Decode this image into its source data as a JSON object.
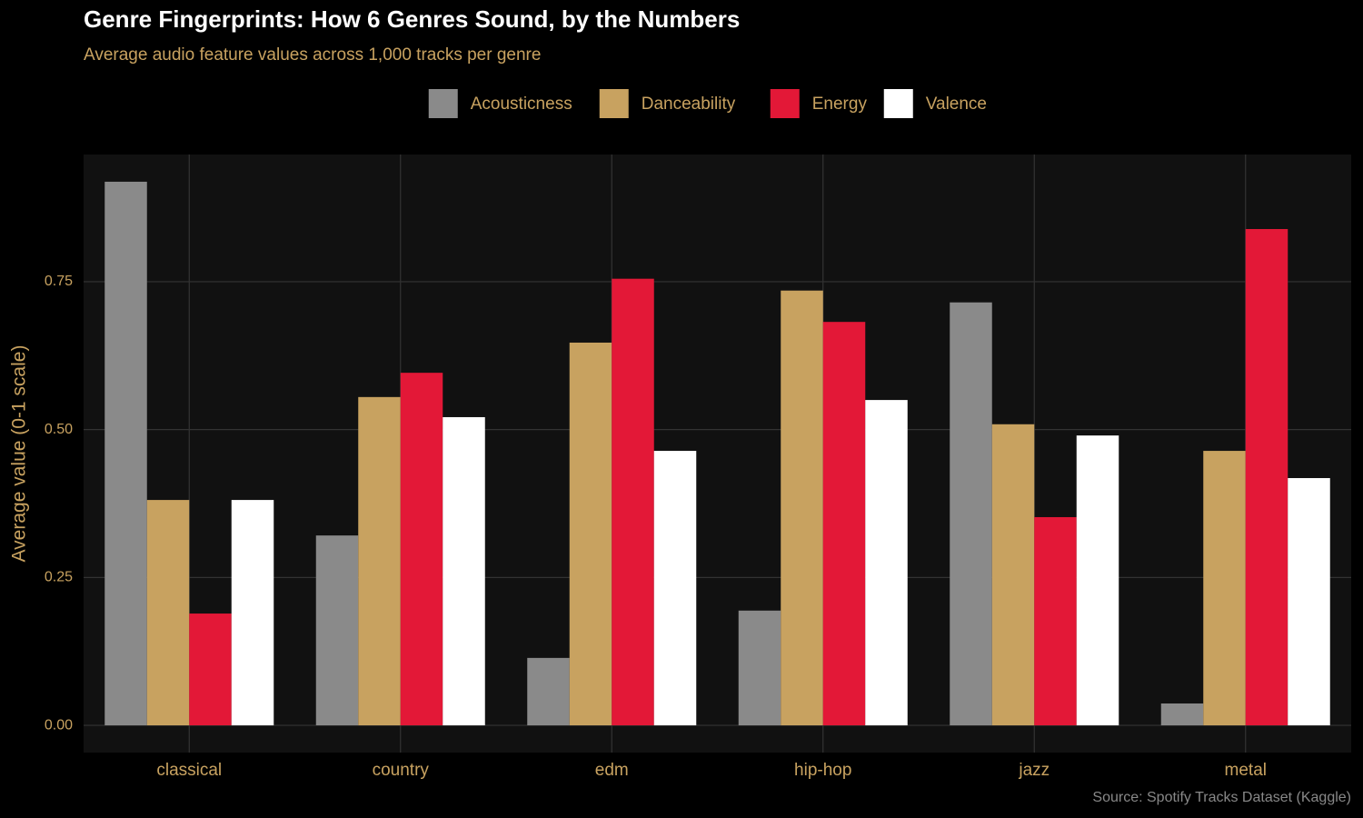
{
  "chart_data": {
    "type": "grouped_bar",
    "title": "Genre Fingerprints: How 6 Genres Sound, by the Numbers",
    "subtitle": "Average audio feature values across 1,000 tracks per genre",
    "y_label": "Average value (0-1 scale)",
    "caption": "Source: Spotify Tracks Dataset (Kaggle)",
    "categories": [
      "classical",
      "country",
      "edm",
      "hip-hop",
      "jazz",
      "metal"
    ],
    "series": [
      {
        "name": "Acousticness",
        "color": "#8a8a8a",
        "values": [
          0.919,
          0.321,
          0.114,
          0.194,
          0.715,
          0.037
        ]
      },
      {
        "name": "Danceability",
        "color": "#c8a260",
        "values": [
          0.381,
          0.555,
          0.647,
          0.735,
          0.509,
          0.464
        ]
      },
      {
        "name": "Energy",
        "color": "#e31837",
        "values": [
          0.189,
          0.596,
          0.755,
          0.682,
          0.352,
          0.839
        ]
      },
      {
        "name": "Valence",
        "color": "#ffffff",
        "values": [
          0.381,
          0.521,
          0.464,
          0.55,
          0.49,
          0.418
        ]
      }
    ],
    "ylim": [
      -0.046,
      0.965
    ],
    "yticks": [
      {
        "value": 0,
        "label": "0.00"
      },
      {
        "value": 0.25,
        "label": "0.25"
      },
      {
        "value": 0.5,
        "label": "0.50"
      },
      {
        "value": 0.75,
        "label": "0.75"
      }
    ],
    "grid": true,
    "legend": "top"
  }
}
